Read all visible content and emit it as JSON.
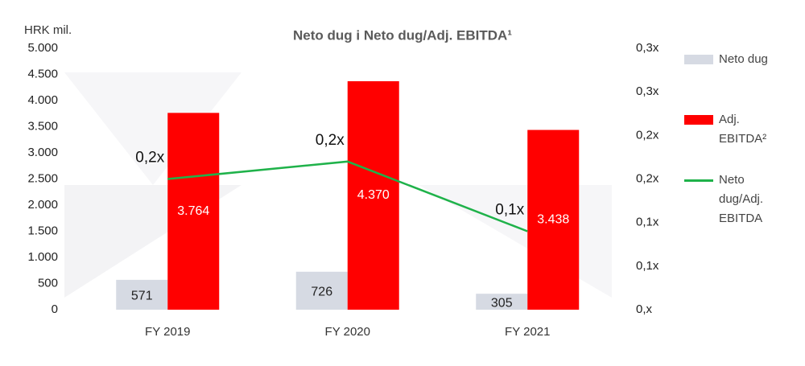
{
  "chart_data": {
    "type": "bar",
    "title": "Neto dug i Neto dug/Adj. EBITDA¹",
    "y_axis_label": "HRK mil.",
    "categories": [
      "FY 2019",
      "FY 2020",
      "FY 2021"
    ],
    "series": [
      {
        "name": "Neto dug",
        "color": "#d6dae3",
        "values": [
          571,
          726,
          305
        ]
      },
      {
        "name": "Adj. EBITDA²",
        "color": "#ff0000",
        "values": [
          3764,
          4370,
          3438
        ],
        "value_labels": [
          "3.764",
          "4.370",
          "3.438"
        ]
      },
      {
        "name": "Neto dug/Adj. EBITDA",
        "color": "#1fb24a",
        "type": "line",
        "axis": "y2",
        "values": [
          0.15,
          0.17,
          0.09
        ],
        "value_labels": [
          "0,2x",
          "0,2x",
          "0,1x"
        ]
      }
    ],
    "ylim": [
      0,
      5000
    ],
    "yticks": [
      {
        "value": 5000,
        "label": "5.000"
      },
      {
        "value": 4500,
        "label": "4.500"
      },
      {
        "value": 4000,
        "label": "4.000"
      },
      {
        "value": 3500,
        "label": "3.500"
      },
      {
        "value": 3000,
        "label": "3.000"
      },
      {
        "value": 2500,
        "label": "2.500"
      },
      {
        "value": 2000,
        "label": "2.000"
      },
      {
        "value": 1500,
        "label": "1.500"
      },
      {
        "value": 1000,
        "label": "1.000"
      },
      500,
      0
    ],
    "y2lim": [
      0,
      0.3
    ],
    "y2ticks": [
      {
        "value": 0.3,
        "label": "0,3x"
      },
      {
        "value": 0.25,
        "label": "0,3x"
      },
      {
        "value": 0.2,
        "label": "0,2x"
      },
      {
        "value": 0.15,
        "label": "0,2x"
      },
      {
        "value": 0.1,
        "label": "0,1x"
      },
      {
        "value": 0.05,
        "label": "0,1x"
      },
      {
        "value": 0,
        "label": "0,x"
      }
    ],
    "legend": "right"
  }
}
